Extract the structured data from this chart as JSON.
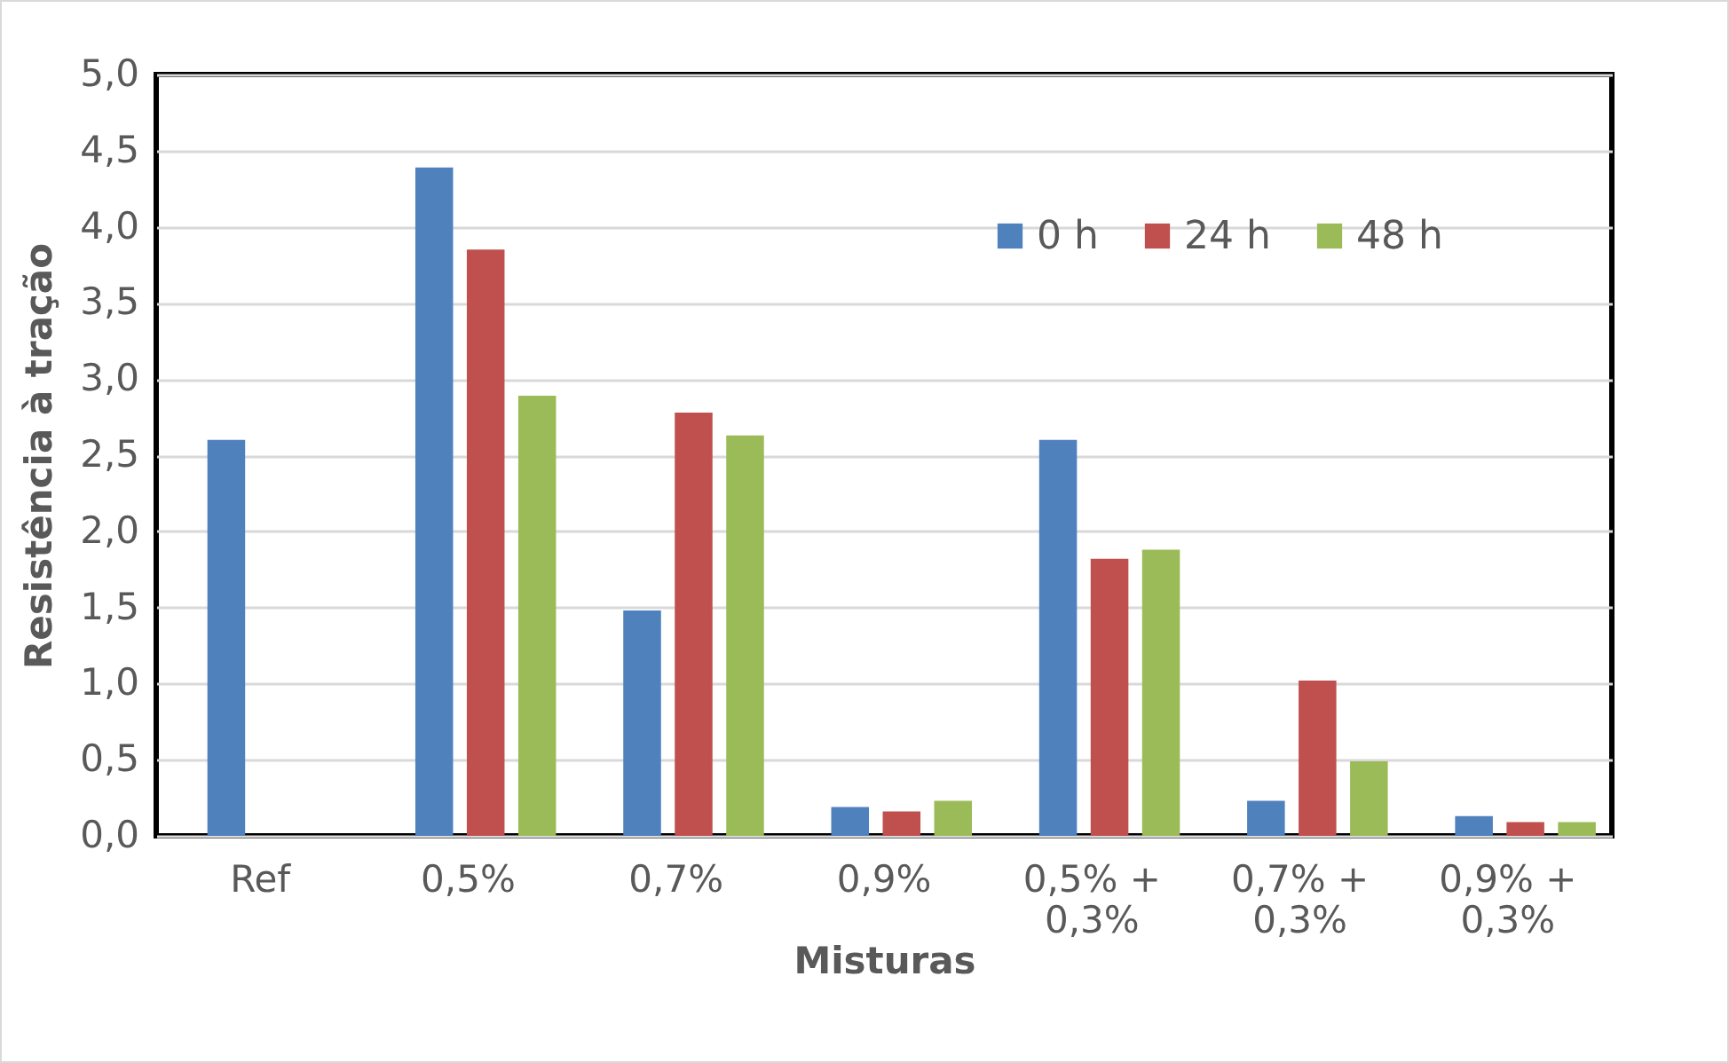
{
  "chart_data": {
    "type": "bar",
    "xlabel": "Misturas",
    "ylabel": "Resistência à tração",
    "categories": [
      "Ref",
      "0,5%",
      "0,7%",
      "0,9%",
      "0,5% + 0,3%",
      "0,7% + 0,3%",
      "0,9% + 0,3%"
    ],
    "series": [
      {
        "name": "0 h",
        "color": "#4f81bd",
        "values": [
          2.6,
          4.39,
          1.48,
          0.19,
          2.6,
          0.23,
          0.13
        ]
      },
      {
        "name": "24 h",
        "color": "#c0504d",
        "values": [
          null,
          3.85,
          2.78,
          0.16,
          1.82,
          1.02,
          0.09
        ]
      },
      {
        "name": "48 h",
        "color": "#9bbb59",
        "values": [
          null,
          2.89,
          2.63,
          0.23,
          1.88,
          0.49,
          0.09
        ]
      }
    ],
    "ylim": [
      0,
      5
    ],
    "yticks": [
      {
        "value": 0,
        "label": "0,0"
      },
      {
        "value": 0.5,
        "label": "0,5"
      },
      {
        "value": 1,
        "label": "1,0"
      },
      {
        "value": 1.5,
        "label": "1,5"
      },
      {
        "value": 2,
        "label": "2,0"
      },
      {
        "value": 2.5,
        "label": "2,5"
      },
      {
        "value": 3,
        "label": "3,0"
      },
      {
        "value": 3.5,
        "label": "3,5"
      },
      {
        "value": 4,
        "label": "4,0"
      },
      {
        "value": 4.5,
        "label": "4,5"
      },
      {
        "value": 5,
        "label": "5,0"
      }
    ],
    "grid": "y",
    "legend": "top right"
  }
}
